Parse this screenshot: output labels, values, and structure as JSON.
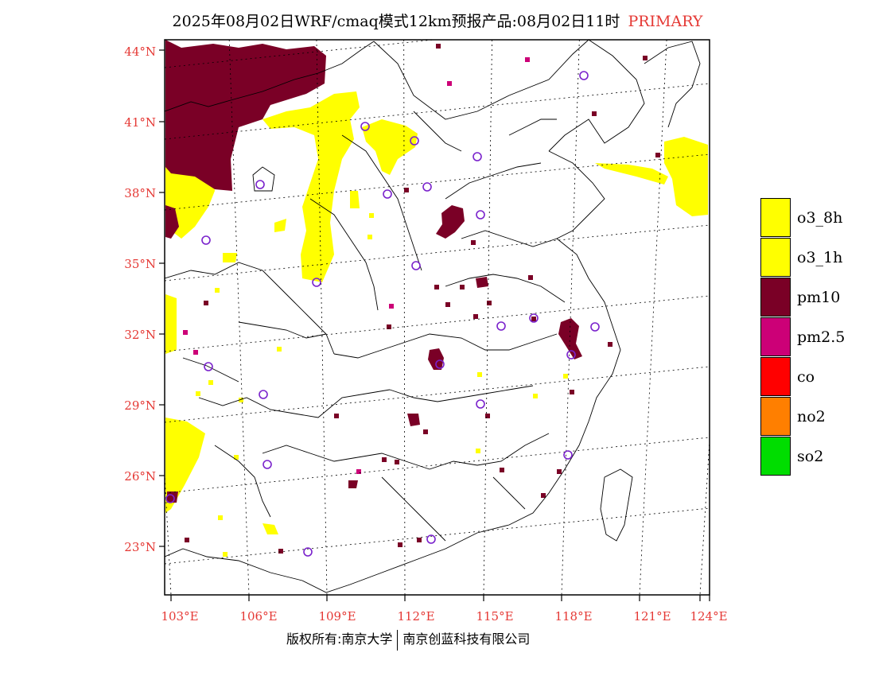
{
  "title": {
    "main": "2025年08月02日WRF/cmaq模式12km预报产品:08月02日11时",
    "tag": "PRIMARY"
  },
  "footer": {
    "left": "版权所有:南京大学",
    "right": "南京创蓝科技有限公司"
  },
  "map": {
    "lat_labels": [
      "44°N",
      "41°N",
      "38°N",
      "35°N",
      "32°N",
      "29°N",
      "26°N",
      "23°N"
    ],
    "lon_labels": [
      "103°E",
      "106°E",
      "109°E",
      "112°E",
      "115°E",
      "118°E",
      "121°E",
      "124°E"
    ],
    "colors": {
      "yellow": "#ffff00",
      "maroon": "#7a0026",
      "magenta": "#cc0077",
      "station": "#7a22cc",
      "border": "#000000"
    }
  },
  "legend": [
    {
      "label": "o3_8h",
      "color": "#ffff00"
    },
    {
      "label": "o3_1h",
      "color": "#ffff00"
    },
    {
      "label": "pm10",
      "color": "#7a0026"
    },
    {
      "label": "pm2.5",
      "color": "#cc0077"
    },
    {
      "label": "co",
      "color": "#ff0000"
    },
    {
      "label": "no2",
      "color": "#ff7f00"
    },
    {
      "label": "so2",
      "color": "#00dd00"
    }
  ]
}
